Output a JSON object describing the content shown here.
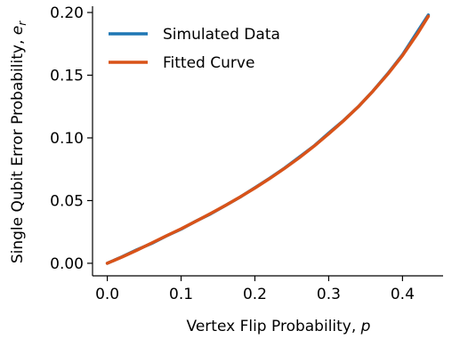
{
  "chart_data": {
    "type": "line",
    "xlabel": "Vertex Flip Probability, ",
    "xlabel_var": "p",
    "ylabel": "Single Qubit Error Probability, ",
    "ylabel_var": "e",
    "ylabel_sub": "r",
    "xlim": [
      -0.02,
      0.455
    ],
    "ylim": [
      -0.01,
      0.205
    ],
    "xticks": [
      0.0,
      0.1,
      0.2,
      0.3,
      0.4
    ],
    "xtick_labels": [
      "0.0",
      "0.1",
      "0.2",
      "0.3",
      "0.4"
    ],
    "yticks": [
      0.0,
      0.05,
      0.1,
      0.15,
      0.2
    ],
    "ytick_labels": [
      "0.00",
      "0.05",
      "0.10",
      "0.15",
      "0.20"
    ],
    "grid": false,
    "legend_position": "top-left",
    "series": [
      {
        "name": "Simulated Data",
        "color": "#1f77b4",
        "x": [
          0.0,
          0.02,
          0.04,
          0.06,
          0.08,
          0.1,
          0.12,
          0.14,
          0.16,
          0.18,
          0.2,
          0.22,
          0.24,
          0.26,
          0.28,
          0.3,
          0.32,
          0.34,
          0.36,
          0.38,
          0.4,
          0.42,
          0.435
        ],
        "y": [
          0.0,
          0.0052,
          0.0108,
          0.0158,
          0.0218,
          0.0272,
          0.0336,
          0.0394,
          0.0461,
          0.0528,
          0.0603,
          0.0678,
          0.0758,
          0.0846,
          0.0935,
          0.1038,
          0.1138,
          0.1248,
          0.1374,
          0.1512,
          0.1663,
          0.1845,
          0.198
        ]
      },
      {
        "name": "Fitted Curve",
        "color": "#d95319",
        "x": [
          0.0,
          0.02,
          0.04,
          0.06,
          0.08,
          0.1,
          0.12,
          0.14,
          0.16,
          0.18,
          0.2,
          0.22,
          0.24,
          0.26,
          0.28,
          0.3,
          0.32,
          0.34,
          0.36,
          0.38,
          0.4,
          0.42,
          0.435
        ],
        "y": [
          0.0,
          0.005,
          0.0104,
          0.0161,
          0.0219,
          0.0275,
          0.0335,
          0.0397,
          0.0461,
          0.0529,
          0.06,
          0.0676,
          0.0756,
          0.0841,
          0.0933,
          0.1032,
          0.1136,
          0.1248,
          0.1373,
          0.1508,
          0.1657,
          0.1828,
          0.197
        ]
      }
    ]
  }
}
